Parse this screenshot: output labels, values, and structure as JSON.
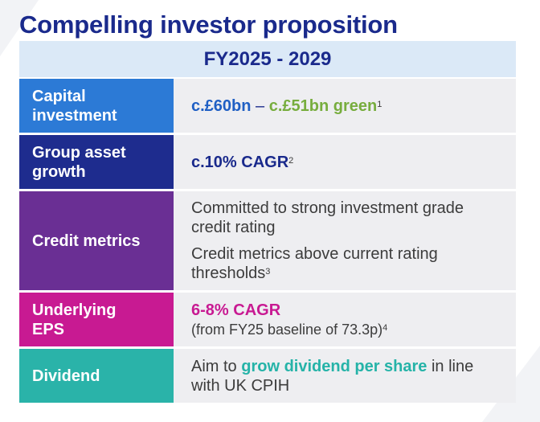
{
  "title": "Compelling investor proposition",
  "period_header": "FY2025 - 2029",
  "rows": [
    {
      "label": "Capital investment",
      "color": "#2c7ad6",
      "value_primary": "c.£60bn",
      "separator": " – ",
      "value_green": "c.£51bn green",
      "footnote": "1"
    },
    {
      "label": "Group asset growth",
      "color": "#1e2c8e",
      "value": "c.10% CAGR",
      "footnote": "2"
    },
    {
      "label": "Credit metrics",
      "color": "#6a2f94",
      "line1": "Committed to strong investment grade credit rating",
      "line2": "Credit metrics above current rating thresholds",
      "footnote": "3"
    },
    {
      "label": "Underlying EPS",
      "color": "#c81a92",
      "value": "6-8% CAGR",
      "sub": "(from FY25 baseline of 73.3p)",
      "footnote": "4"
    },
    {
      "label": "Dividend",
      "color": "#2ab3a9",
      "text_before": "Aim to ",
      "text_highlight": "grow dividend per share",
      "text_after": " in line with UK CPIH"
    }
  ]
}
